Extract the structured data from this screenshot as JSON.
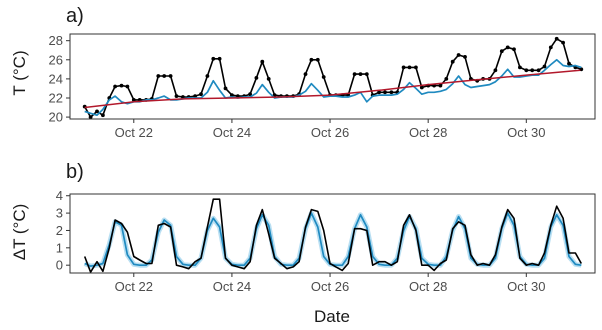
{
  "colors": {
    "observed": "#000000",
    "model": "#1f8ac0",
    "model_band": "#7fc4e8",
    "trend": "#b2182b",
    "frame": "#333333"
  },
  "chart_data": [
    {
      "panel_label": "a)",
      "type": "line",
      "ylabel": "T (°C)",
      "xlabel": "",
      "x_unit": "day of October",
      "xlim": [
        20.7,
        31.4
      ],
      "ylim": [
        19.8,
        28.7
      ],
      "x_ticks": [
        22,
        24,
        26,
        28,
        30
      ],
      "x_tick_labels": [
        "Oct 22",
        "Oct 24",
        "Oct 26",
        "Oct 28",
        "Oct 30"
      ],
      "y_ticks": [
        20,
        22,
        24,
        26,
        28
      ],
      "y_tick_labels": [
        "20",
        "22",
        "24",
        "26",
        "28"
      ],
      "grid": false,
      "series": [
        {
          "role": "observed",
          "style": "line-with-points",
          "x": [
            21.0,
            21.12,
            21.25,
            21.37,
            21.5,
            21.62,
            21.75,
            21.87,
            22.0,
            22.12,
            22.25,
            22.37,
            22.5,
            22.62,
            22.75,
            22.87,
            23.0,
            23.12,
            23.25,
            23.37,
            23.5,
            23.62,
            23.75,
            23.87,
            24.0,
            24.12,
            24.25,
            24.37,
            24.5,
            24.62,
            24.75,
            24.87,
            25.0,
            25.12,
            25.25,
            25.37,
            25.5,
            25.62,
            25.75,
            25.87,
            26.0,
            26.12,
            26.25,
            26.37,
            26.5,
            26.62,
            26.75,
            26.87,
            27.0,
            27.12,
            27.25,
            27.37,
            27.5,
            27.62,
            27.75,
            27.87,
            28.0,
            28.12,
            28.25,
            28.37,
            28.5,
            28.62,
            28.75,
            28.87,
            29.0,
            29.12,
            29.25,
            29.37,
            29.5,
            29.62,
            29.75,
            29.87,
            30.0,
            30.12,
            30.25,
            30.37,
            30.5,
            30.62,
            30.75,
            30.87,
            31.0,
            31.12
          ],
          "values": [
            21.1,
            20.0,
            20.6,
            20.2,
            22.0,
            23.2,
            23.3,
            23.2,
            21.8,
            21.8,
            21.8,
            21.9,
            24.3,
            24.3,
            24.3,
            22.2,
            22.1,
            22.1,
            22.2,
            22.4,
            24.3,
            26.1,
            26.1,
            23.0,
            22.3,
            22.2,
            22.2,
            22.4,
            24.1,
            25.8,
            24.0,
            22.3,
            22.2,
            22.2,
            22.2,
            22.4,
            24.5,
            26.0,
            26.0,
            24.2,
            22.3,
            22.3,
            22.3,
            22.3,
            24.5,
            24.5,
            24.5,
            22.3,
            22.6,
            22.6,
            22.6,
            22.6,
            25.2,
            25.2,
            25.2,
            23.1,
            23.3,
            23.3,
            23.3,
            24.0,
            25.8,
            26.5,
            26.3,
            24.0,
            23.8,
            24.0,
            24.0,
            24.9,
            26.9,
            27.3,
            27.1,
            25.2,
            24.9,
            24.9,
            24.9,
            25.3,
            27.3,
            28.2,
            27.8,
            25.6,
            25.2,
            25.0
          ]
        },
        {
          "role": "model",
          "style": "line",
          "x": [
            21.0,
            21.12,
            21.25,
            21.37,
            21.5,
            21.62,
            21.75,
            21.87,
            22.0,
            22.12,
            22.25,
            22.37,
            22.5,
            22.62,
            22.75,
            22.87,
            23.0,
            23.12,
            23.25,
            23.37,
            23.5,
            23.62,
            23.75,
            23.87,
            24.0,
            24.12,
            24.25,
            24.37,
            24.5,
            24.62,
            24.75,
            24.87,
            25.0,
            25.12,
            25.25,
            25.37,
            25.5,
            25.62,
            25.75,
            25.87,
            26.0,
            26.12,
            26.25,
            26.37,
            26.5,
            26.62,
            26.75,
            26.87,
            27.0,
            27.12,
            27.25,
            27.37,
            27.5,
            27.62,
            27.75,
            27.87,
            28.0,
            28.12,
            28.25,
            28.37,
            28.5,
            28.62,
            28.75,
            28.87,
            29.0,
            29.12,
            29.25,
            29.37,
            29.5,
            29.62,
            29.75,
            29.87,
            30.0,
            30.12,
            30.25,
            30.37,
            30.5,
            30.62,
            30.75,
            30.87,
            31.0,
            31.12
          ],
          "values": [
            20.6,
            20.4,
            20.2,
            20.8,
            21.8,
            22.2,
            21.6,
            21.4,
            21.6,
            21.6,
            21.8,
            21.8,
            22.0,
            22.2,
            21.8,
            21.8,
            21.9,
            22.0,
            22.0,
            22.0,
            22.6,
            23.8,
            22.8,
            22.0,
            22.1,
            22.0,
            22.1,
            22.1,
            22.5,
            23.4,
            22.6,
            22.0,
            22.1,
            22.1,
            22.1,
            22.3,
            22.7,
            23.5,
            22.8,
            22.1,
            22.2,
            22.2,
            22.1,
            22.1,
            22.3,
            22.6,
            21.6,
            22.2,
            22.3,
            22.3,
            22.3,
            22.4,
            22.9,
            23.6,
            23.0,
            22.4,
            22.6,
            22.6,
            22.7,
            22.9,
            23.5,
            24.3,
            23.4,
            23.1,
            23.2,
            23.3,
            23.4,
            23.7,
            24.3,
            25.0,
            24.2,
            24.2,
            24.3,
            24.4,
            24.4,
            24.9,
            25.5,
            26.0,
            25.4,
            25.3,
            25.4,
            25.2
          ]
        },
        {
          "role": "trend",
          "style": "line",
          "x": [
            21.0,
            22.0,
            23.0,
            24.0,
            25.0,
            26.0,
            27.0,
            28.0,
            29.0,
            30.0,
            31.1
          ],
          "values": [
            21.0,
            21.6,
            21.9,
            22.0,
            22.1,
            22.3,
            22.8,
            23.4,
            23.9,
            24.4,
            24.9
          ]
        }
      ]
    },
    {
      "panel_label": "b)",
      "type": "line",
      "ylabel": "ΔT (°C)",
      "xlabel": "Date",
      "x_unit": "day of October",
      "xlim": [
        20.7,
        31.4
      ],
      "ylim": [
        -0.45,
        4.1
      ],
      "x_ticks": [
        22,
        24,
        26,
        28,
        30
      ],
      "x_tick_labels": [
        "Oct 22",
        "Oct 24",
        "Oct 26",
        "Oct 28",
        "Oct 30"
      ],
      "y_ticks": [
        0,
        1,
        2,
        3,
        4
      ],
      "y_tick_labels": [
        "0",
        "1",
        "2",
        "3",
        "4"
      ],
      "grid": false,
      "series": [
        {
          "role": "model",
          "style": "line",
          "x": [
            21.0,
            21.12,
            21.25,
            21.37,
            21.5,
            21.62,
            21.75,
            21.87,
            22.0,
            22.12,
            22.25,
            22.37,
            22.5,
            22.62,
            22.75,
            22.87,
            23.0,
            23.12,
            23.25,
            23.37,
            23.5,
            23.62,
            23.75,
            23.87,
            24.0,
            24.12,
            24.25,
            24.37,
            24.5,
            24.62,
            24.75,
            24.87,
            25.0,
            25.12,
            25.25,
            25.37,
            25.5,
            25.62,
            25.75,
            25.87,
            26.0,
            26.12,
            26.25,
            26.37,
            26.5,
            26.62,
            26.75,
            26.87,
            27.0,
            27.12,
            27.25,
            27.37,
            27.5,
            27.62,
            27.75,
            27.87,
            28.0,
            28.12,
            28.25,
            28.37,
            28.5,
            28.62,
            28.75,
            28.87,
            29.0,
            29.12,
            29.25,
            29.37,
            29.5,
            29.62,
            29.75,
            29.87,
            30.0,
            30.12,
            30.25,
            30.37,
            30.5,
            30.62,
            30.75,
            30.87,
            31.0,
            31.12
          ],
          "values": [
            0.1,
            -0.05,
            0.0,
            0.1,
            1.2,
            2.5,
            2.3,
            0.6,
            0.05,
            0.0,
            0.0,
            0.3,
            1.9,
            2.6,
            2.3,
            0.5,
            0.05,
            0.0,
            0.0,
            0.4,
            2.0,
            2.7,
            2.2,
            0.4,
            0.05,
            0.0,
            0.0,
            0.4,
            2.1,
            2.9,
            2.3,
            0.5,
            0.05,
            0.0,
            0.0,
            0.4,
            2.1,
            3.0,
            2.2,
            0.5,
            0.05,
            0.0,
            0.0,
            0.5,
            2.1,
            2.9,
            2.2,
            0.5,
            0.05,
            0.0,
            0.0,
            0.4,
            2.0,
            2.8,
            2.1,
            0.4,
            0.05,
            0.0,
            0.0,
            0.5,
            2.0,
            2.8,
            2.1,
            0.4,
            0.05,
            0.0,
            0.0,
            0.4,
            2.1,
            3.0,
            2.3,
            0.5,
            0.05,
            0.0,
            0.0,
            0.4,
            2.2,
            2.9,
            2.3,
            0.5,
            0.05,
            0.0
          ]
        },
        {
          "role": "observed",
          "style": "line",
          "x": [
            21.0,
            21.12,
            21.25,
            21.37,
            21.5,
            21.62,
            21.75,
            21.87,
            22.0,
            22.12,
            22.25,
            22.37,
            22.5,
            22.62,
            22.75,
            22.87,
            23.0,
            23.12,
            23.25,
            23.37,
            23.5,
            23.62,
            23.75,
            23.87,
            24.0,
            24.12,
            24.25,
            24.37,
            24.5,
            24.62,
            24.75,
            24.87,
            25.0,
            25.12,
            25.25,
            25.37,
            25.5,
            25.62,
            25.75,
            25.87,
            26.0,
            26.12,
            26.25,
            26.37,
            26.5,
            26.62,
            26.75,
            26.87,
            27.0,
            27.12,
            27.25,
            27.37,
            27.5,
            27.62,
            27.75,
            27.87,
            28.0,
            28.12,
            28.25,
            28.37,
            28.5,
            28.62,
            28.75,
            28.87,
            29.0,
            29.12,
            29.25,
            29.37,
            29.5,
            29.62,
            29.75,
            29.87,
            30.0,
            30.12,
            30.25,
            30.37,
            30.5,
            30.62,
            30.75,
            30.87,
            31.0,
            31.12
          ],
          "values": [
            0.5,
            -0.4,
            0.2,
            -0.35,
            1.0,
            2.6,
            2.4,
            1.9,
            0.5,
            0.3,
            0.1,
            0.1,
            2.3,
            2.4,
            2.2,
            0.0,
            -0.1,
            -0.2,
            0.2,
            0.4,
            2.2,
            3.8,
            3.8,
            0.4,
            0.0,
            -0.1,
            -0.2,
            0.2,
            2.3,
            3.2,
            1.8,
            0.4,
            0.1,
            -0.2,
            -0.1,
            0.2,
            2.2,
            3.2,
            3.1,
            2.0,
            0.1,
            -0.1,
            -0.3,
            0.1,
            2.1,
            2.1,
            2.0,
            0.0,
            0.2,
            0.2,
            0.0,
            0.2,
            2.3,
            2.9,
            2.0,
            0.0,
            0.0,
            -0.3,
            0.1,
            0.3,
            2.1,
            2.5,
            2.3,
            0.6,
            0.0,
            0.1,
            0.0,
            0.6,
            2.2,
            3.2,
            2.7,
            0.4,
            0.0,
            0.1,
            0.0,
            0.7,
            2.3,
            3.4,
            2.7,
            0.7,
            0.7,
            0.1
          ]
        }
      ]
    }
  ]
}
